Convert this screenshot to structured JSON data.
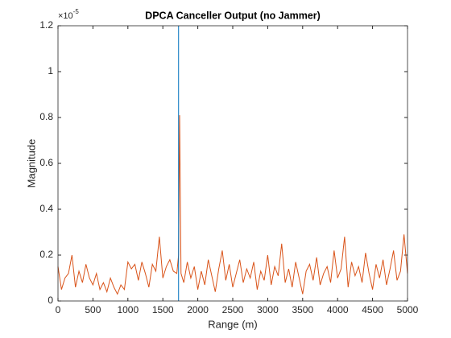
{
  "chart_data": {
    "type": "line",
    "title": "DPCA Canceller Output (no Jammer)",
    "xlabel": "Range (m)",
    "ylabel": "Magnitude",
    "y_multiplier": {
      "base": "×10",
      "exponent": "-5"
    },
    "x": [
      0,
      50,
      100,
      150,
      200,
      250,
      300,
      350,
      400,
      450,
      500,
      550,
      600,
      650,
      700,
      750,
      800,
      850,
      900,
      950,
      1000,
      1050,
      1100,
      1150,
      1200,
      1250,
      1300,
      1350,
      1400,
      1450,
      1500,
      1550,
      1600,
      1650,
      1700,
      1725,
      1740,
      1760,
      1800,
      1850,
      1900,
      1950,
      2000,
      2050,
      2100,
      2150,
      2200,
      2250,
      2300,
      2350,
      2400,
      2450,
      2500,
      2550,
      2600,
      2650,
      2700,
      2750,
      2800,
      2850,
      2900,
      2950,
      3000,
      3050,
      3100,
      3150,
      3200,
      3250,
      3300,
      3350,
      3400,
      3450,
      3500,
      3550,
      3600,
      3650,
      3700,
      3750,
      3800,
      3850,
      3900,
      3950,
      4000,
      4050,
      4100,
      4150,
      4200,
      4250,
      4300,
      4350,
      4400,
      4450,
      4500,
      4550,
      4600,
      4650,
      4700,
      4750,
      4800,
      4850,
      4900,
      4950,
      5000
    ],
    "series": [
      {
        "name": "Magnitude",
        "color": "#d95319",
        "values": [
          0.15,
          0.05,
          0.1,
          0.12,
          0.2,
          0.06,
          0.13,
          0.08,
          0.16,
          0.1,
          0.07,
          0.12,
          0.05,
          0.08,
          0.04,
          0.1,
          0.06,
          0.03,
          0.07,
          0.05,
          0.17,
          0.14,
          0.16,
          0.09,
          0.17,
          0.12,
          0.06,
          0.16,
          0.13,
          0.28,
          0.1,
          0.15,
          0.18,
          0.13,
          0.12,
          0.2,
          0.81,
          0.12,
          0.08,
          0.17,
          0.1,
          0.15,
          0.05,
          0.13,
          0.07,
          0.18,
          0.11,
          0.04,
          0.14,
          0.22,
          0.09,
          0.16,
          0.06,
          0.12,
          0.18,
          0.08,
          0.14,
          0.1,
          0.17,
          0.05,
          0.13,
          0.09,
          0.2,
          0.07,
          0.15,
          0.11,
          0.25,
          0.08,
          0.14,
          0.06,
          0.17,
          0.1,
          0.03,
          0.13,
          0.16,
          0.09,
          0.19,
          0.07,
          0.12,
          0.15,
          0.08,
          0.22,
          0.1,
          0.14,
          0.28,
          0.06,
          0.17,
          0.11,
          0.15,
          0.08,
          0.21,
          0.12,
          0.05,
          0.16,
          0.1,
          0.18,
          0.07,
          0.14,
          0.22,
          0.09,
          0.13,
          0.29,
          0.12
        ]
      }
    ],
    "vline": {
      "x": 1725,
      "color": "#0072bd"
    },
    "xlim": [
      0,
      5000
    ],
    "xticks": [
      0,
      500,
      1000,
      1500,
      2000,
      2500,
      3000,
      3500,
      4000,
      4500,
      5000
    ],
    "ylim": [
      0,
      1.2
    ],
    "yticks": [
      0,
      0.2,
      0.4,
      0.6,
      0.8,
      1,
      1.2
    ]
  }
}
